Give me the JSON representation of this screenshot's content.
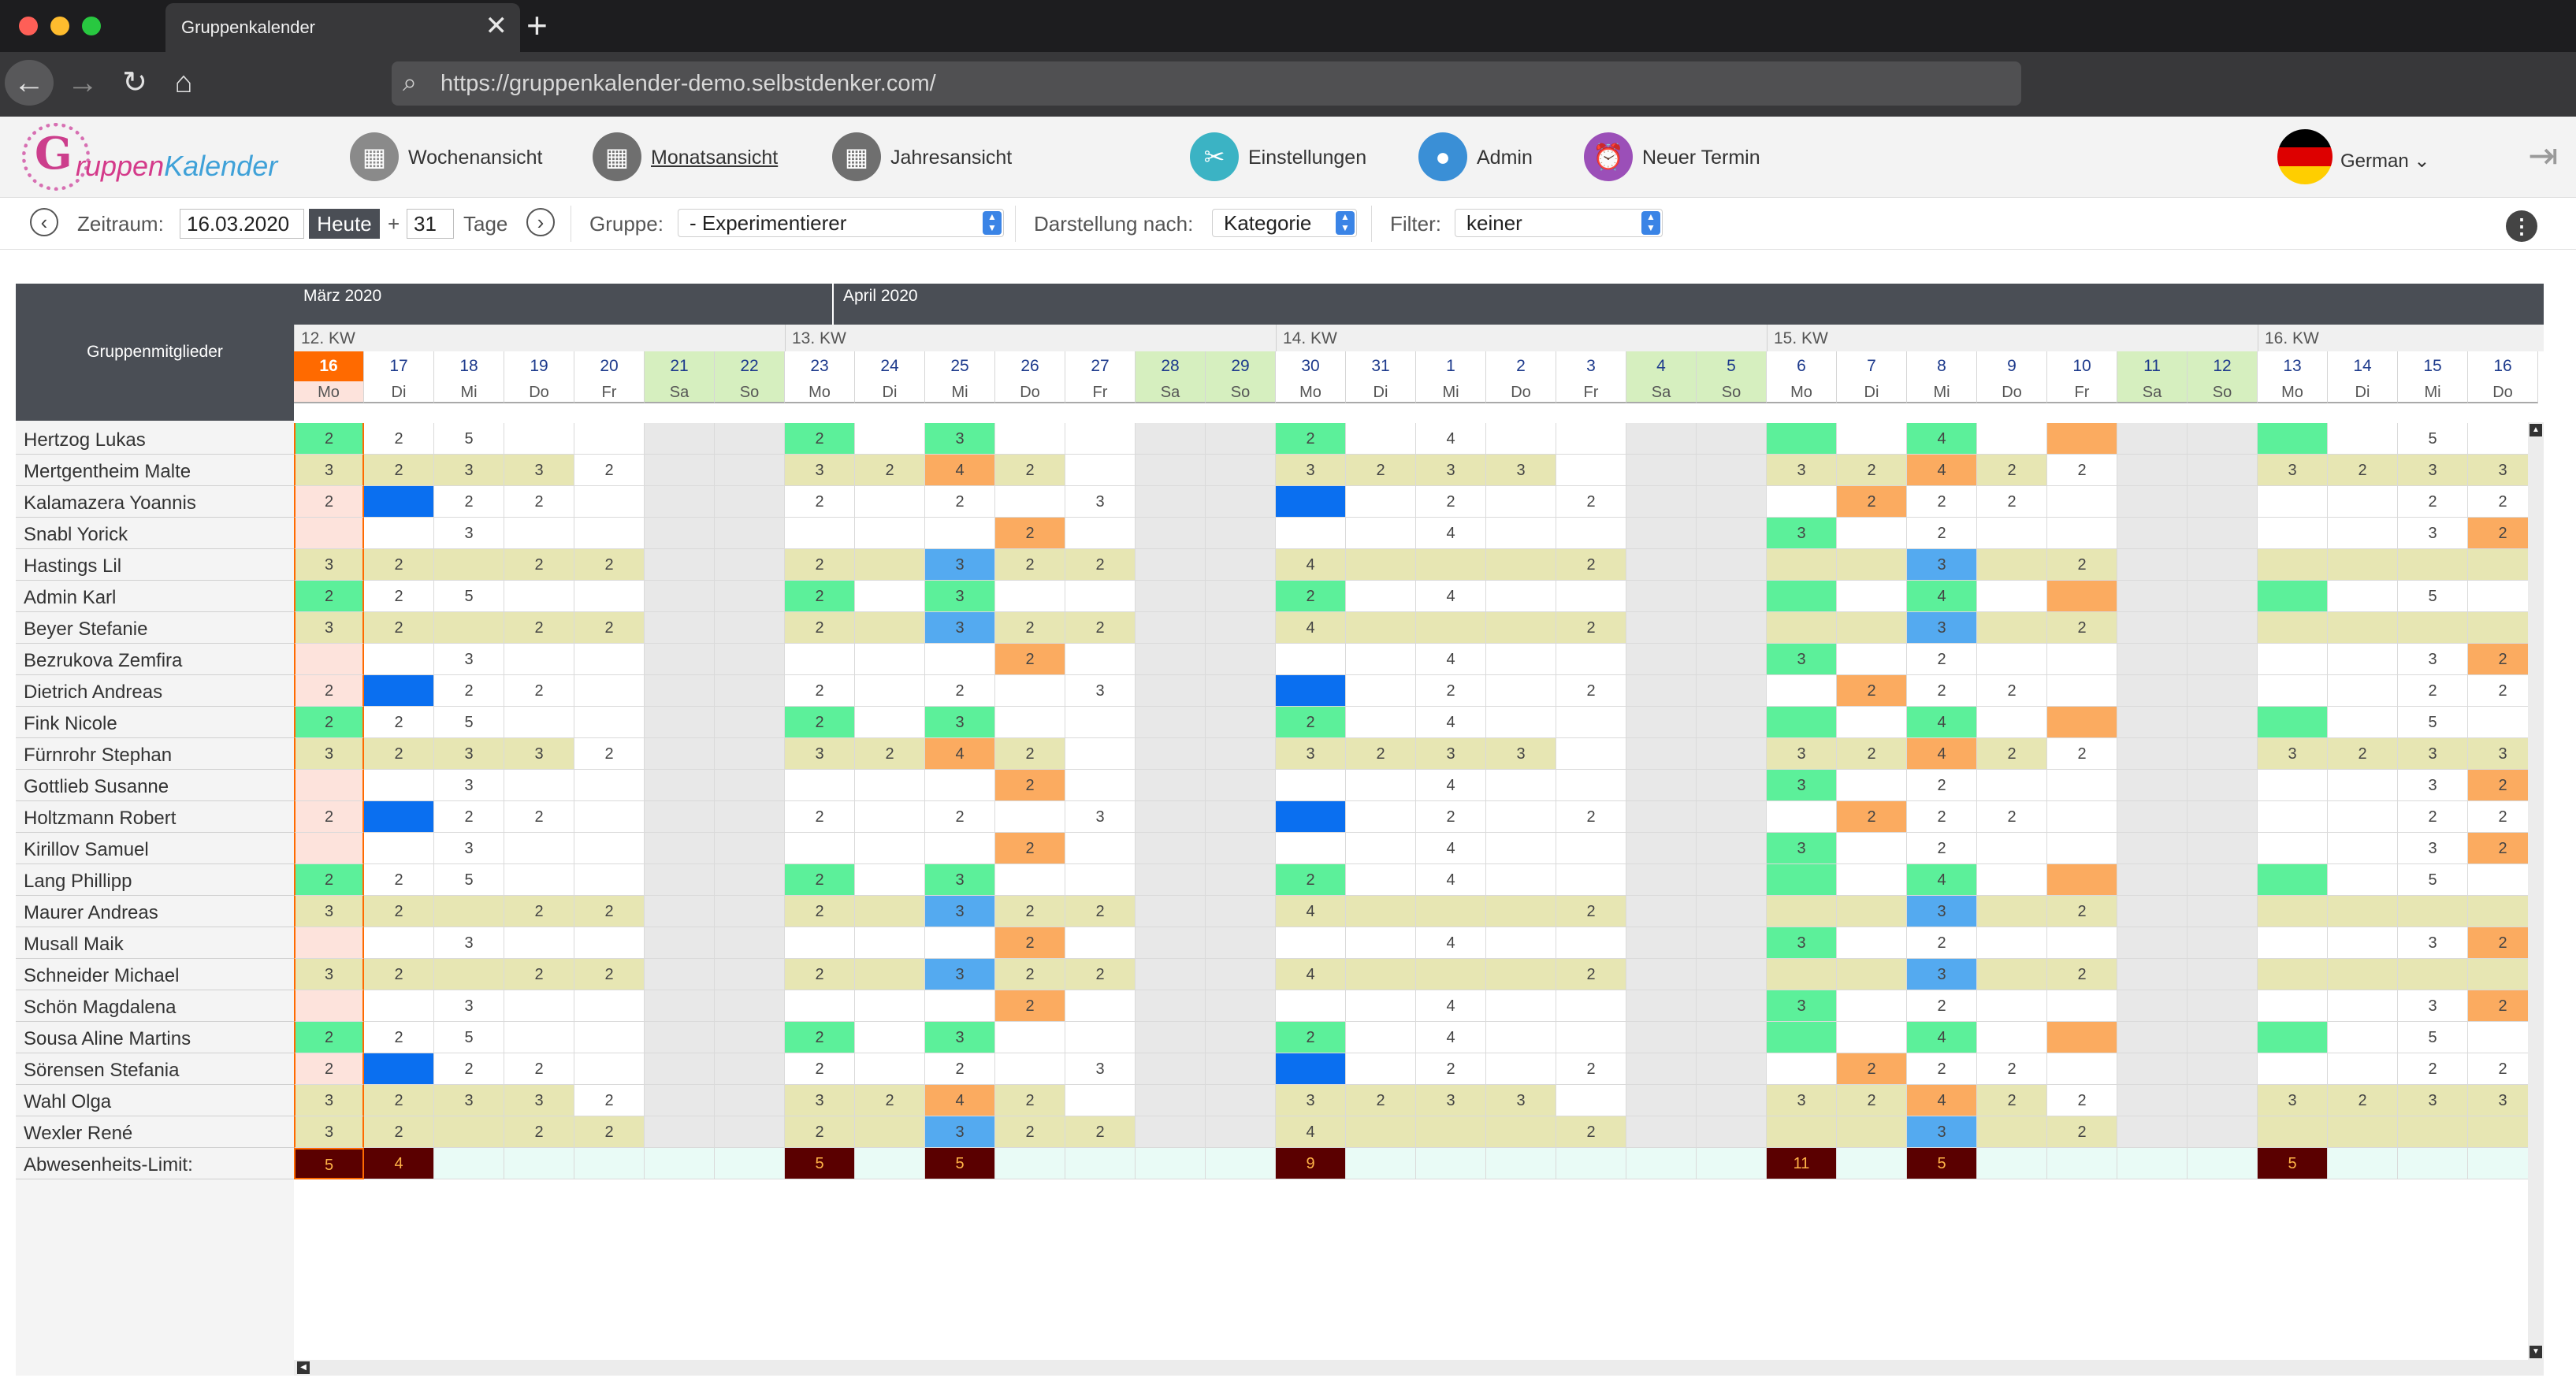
{
  "browser": {
    "tab_title": "Gruppenkalender",
    "url": "https://gruppenkalender-demo.selbstdenker.com/"
  },
  "logo": {
    "part1": "ruppen",
    "part2": "Kalender"
  },
  "nav": [
    {
      "label": "Wochenansicht",
      "icon": "calendar-week-icon",
      "color": "#8a8a8a",
      "active": false
    },
    {
      "label": "Monatsansicht",
      "icon": "calendar-month-icon",
      "color": "#6f6f6f",
      "active": true
    },
    {
      "label": "Jahresansicht",
      "icon": "calendar-year-icon",
      "color": "#6f6f6f",
      "active": false
    },
    {
      "label": "Einstellungen",
      "icon": "tools-icon",
      "color": "#3bb3c4",
      "active": false
    },
    {
      "label": "Admin",
      "icon": "user-icon",
      "color": "#3a8fd6",
      "active": false
    },
    {
      "label": "Neuer Termin",
      "icon": "alarm-clock-icon",
      "color": "#9b4fb8",
      "active": false
    }
  ],
  "language": {
    "label": "German",
    "icon": "german-flag-icon"
  },
  "toolbar": {
    "zeitraum_label": "Zeitraum:",
    "date_value": "16.03.2020",
    "today_label": "Heute",
    "plus": "+",
    "days_value": "31",
    "days_label": "Tage",
    "gruppe_label": "Gruppe:",
    "gruppe_value": "- Experimentierer",
    "darstellung_label": "Darstellung nach:",
    "darstellung_value": "Kategorie",
    "filter_label": "Filter:",
    "filter_value": "keiner"
  },
  "calendar": {
    "members_header": "Gruppenmitglieder",
    "months": [
      "März 2020",
      "April 2020"
    ],
    "weeks": [
      "12. KW",
      "13. KW",
      "14. KW",
      "15. KW",
      "16. KW"
    ],
    "days": [
      {
        "n": "16",
        "w": "Mo"
      },
      {
        "n": "17",
        "w": "Di"
      },
      {
        "n": "18",
        "w": "Mi"
      },
      {
        "n": "19",
        "w": "Do"
      },
      {
        "n": "20",
        "w": "Fr"
      },
      {
        "n": "21",
        "w": "Sa"
      },
      {
        "n": "22",
        "w": "So"
      },
      {
        "n": "23",
        "w": "Mo"
      },
      {
        "n": "24",
        "w": "Di"
      },
      {
        "n": "25",
        "w": "Mi"
      },
      {
        "n": "26",
        "w": "Do"
      },
      {
        "n": "27",
        "w": "Fr"
      },
      {
        "n": "28",
        "w": "Sa"
      },
      {
        "n": "29",
        "w": "So"
      },
      {
        "n": "30",
        "w": "Mo"
      },
      {
        "n": "31",
        "w": "Di"
      },
      {
        "n": "1",
        "w": "Mi"
      },
      {
        "n": "2",
        "w": "Do"
      },
      {
        "n": "3",
        "w": "Fr"
      },
      {
        "n": "4",
        "w": "Sa"
      },
      {
        "n": "5",
        "w": "So"
      },
      {
        "n": "6",
        "w": "Mo"
      },
      {
        "n": "7",
        "w": "Di"
      },
      {
        "n": "8",
        "w": "Mi"
      },
      {
        "n": "9",
        "w": "Do"
      },
      {
        "n": "10",
        "w": "Fr"
      },
      {
        "n": "11",
        "w": "Sa"
      },
      {
        "n": "12",
        "w": "So"
      },
      {
        "n": "13",
        "w": "Mo"
      },
      {
        "n": "14",
        "w": "Di"
      },
      {
        "n": "15",
        "w": "Mi"
      },
      {
        "n": "16",
        "w": "Do"
      }
    ],
    "members": [
      "Hertzog Lukas",
      "Mertgentheim Malte",
      "Kalamazera Yoannis",
      "Snabl Yorick",
      "Hastings Lil",
      "Admin Karl",
      "Beyer Stefanie",
      "Bezrukova Zemfira",
      "Dietrich Andreas",
      "Fink Nicole",
      "Fürnrohr Stephan",
      "Gottlieb Susanne",
      "Holtzmann Robert",
      "Kirillov Samuel",
      "Lang Phillipp",
      "Maurer Andreas",
      "Musall Maik",
      "Schneider Michael",
      "Schön Magdalena",
      "Sousa Aline Martins",
      "Sörensen Stefania",
      "Wahl Olga",
      "Wexler René"
    ],
    "limit_label": "Abwesenheits-Limit:",
    "limit_values": [
      "5",
      "4",
      "",
      "",
      "",
      "",
      "",
      "5",
      "",
      "5",
      "",
      "",
      "",
      "",
      "9",
      "",
      "",
      "",
      "",
      "",
      "",
      "11",
      "",
      "5",
      "",
      "",
      "",
      "",
      "5",
      "",
      "",
      ""
    ],
    "colors": {
      "green": "#5cf09a",
      "orange": "#fbab60",
      "blue": "#54aaf0",
      "darkblue": "#0a6ff0",
      "pinklight": "#fde3dc",
      "olive": "#e7e6b3",
      "weekend": "#e8e8e8",
      "today": "#ff6a00",
      "limit_dark": "#5a0000",
      "limit_bg": "#e9fbf6",
      "weekend_header": "#d6efbf"
    }
  },
  "pattern_A": {
    "values": [
      "2",
      "2",
      "5",
      "",
      "",
      "",
      "",
      "2",
      "",
      "3",
      "",
      "",
      "",
      "",
      "2",
      "",
      "4",
      "",
      "",
      "",
      "",
      "",
      "",
      "4",
      "",
      "",
      "",
      "",
      "",
      "",
      "5",
      ""
    ],
    "colors": [
      "green",
      "",
      "",
      "",
      "",
      "W",
      "W",
      "green",
      "",
      "green",
      "",
      "",
      "W",
      "W",
      "green",
      "",
      "",
      "",
      "",
      "W",
      "W",
      "green",
      "",
      "green",
      "",
      "orange",
      "W",
      "W",
      "green",
      "",
      "",
      ""
    ]
  },
  "pattern_B": {
    "values": [
      "3",
      "2",
      "3",
      "3",
      "2",
      "",
      "",
      "3",
      "2",
      "4",
      "2",
      "",
      "",
      "",
      "3",
      "2",
      "3",
      "3",
      "",
      "",
      "",
      "3",
      "2",
      "4",
      "2",
      "2",
      "",
      "",
      "3",
      "2",
      "3",
      "3"
    ],
    "colors": [
      "olive",
      "olive",
      "olive",
      "olive",
      "",
      "W",
      "W",
      "olive",
      "olive",
      "orange",
      "olive",
      "",
      "W",
      "W",
      "olive",
      "olive",
      "olive",
      "olive",
      "",
      "W",
      "W",
      "olive",
      "olive",
      "orange",
      "olive",
      "",
      "W",
      "W",
      "olive",
      "olive",
      "olive",
      "olive"
    ]
  },
  "pattern_C": {
    "values": [
      "2",
      "",
      "2",
      "2",
      "",
      "",
      "",
      "2",
      "",
      "2",
      "",
      "3",
      "",
      "",
      "",
      "",
      "2",
      "",
      "2",
      "",
      "",
      "",
      "2",
      "2",
      "2",
      "",
      "",
      "",
      "",
      "",
      "2",
      "2"
    ],
    "colors": [
      "pinklight",
      "darkblue",
      "",
      "",
      "",
      "W",
      "W",
      "",
      "",
      "",
      "",
      "",
      "W",
      "W",
      "darkblue",
      "",
      "",
      "",
      "",
      "W",
      "W",
      "",
      "orange",
      "",
      "",
      "",
      "W",
      "W",
      "",
      "",
      "",
      ""
    ]
  },
  "pattern_D": {
    "values": [
      "",
      "",
      "3",
      "",
      "",
      "",
      "",
      "",
      "",
      "",
      "2",
      "",
      "",
      "",
      "",
      "",
      "4",
      "",
      "",
      "",
      "",
      "3",
      "",
      "2",
      "",
      "",
      "",
      "",
      "",
      "",
      "3",
      "2"
    ],
    "colors": [
      "pinklight",
      "",
      "",
      "",
      "",
      "W",
      "W",
      "",
      "",
      "",
      "orange",
      "",
      "W",
      "W",
      "",
      "",
      "",
      "",
      "",
      "W",
      "W",
      "green",
      "",
      "",
      "",
      "",
      "W",
      "W",
      "",
      "",
      "",
      "orange"
    ]
  },
  "pattern_E": {
    "values": [
      "3",
      "2",
      "",
      "2",
      "2",
      "",
      "",
      "2",
      "",
      "3",
      "2",
      "2",
      "",
      "",
      "4",
      "",
      "",
      "",
      "2",
      "",
      "",
      "",
      "",
      "3",
      "",
      "2",
      "",
      "",
      "",
      "",
      "",
      ""
    ],
    "colors": [
      "olive",
      "olive",
      "olive",
      "olive",
      "olive",
      "W",
      "W",
      "olive",
      "olive",
      "blue",
      "olive",
      "olive",
      "W",
      "W",
      "olive",
      "olive",
      "olive",
      "olive",
      "olive",
      "W",
      "W",
      "olive",
      "olive",
      "blue",
      "olive",
      "olive",
      "W",
      "W",
      "olive",
      "olive",
      "olive",
      "olive"
    ]
  },
  "row_patterns": [
    "A",
    "B",
    "C",
    "D",
    "E",
    "A",
    "E",
    "D",
    "C",
    "A",
    "B",
    "D",
    "C",
    "D",
    "A",
    "E",
    "D",
    "E",
    "D",
    "A",
    "C",
    "B",
    "E"
  ]
}
